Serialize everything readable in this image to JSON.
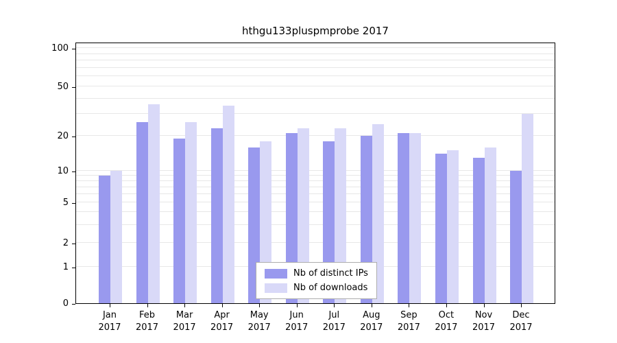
{
  "title": "hthgu133pluspmprobe 2017",
  "chart_data": {
    "type": "bar",
    "title": "hthgu133pluspmprobe 2017",
    "categories": [
      "Jan",
      "Feb",
      "Mar",
      "Apr",
      "May",
      "Jun",
      "Jul",
      "Aug",
      "Sep",
      "Oct",
      "Nov",
      "Dec"
    ],
    "year_label": "2017",
    "series": [
      {
        "name": "Nb of distinct IPs",
        "color": "#9999ee",
        "values": [
          9,
          26,
          19,
          23,
          16,
          21,
          18,
          20,
          21,
          14,
          13,
          10
        ]
      },
      {
        "name": "Nb of downloads",
        "color": "#d9d9f8",
        "values": [
          10,
          36,
          26,
          35,
          18,
          23,
          23,
          25,
          21,
          15,
          16,
          30
        ]
      }
    ],
    "y_ticks": [
      0,
      1,
      2,
      5,
      10,
      20,
      50,
      100
    ],
    "ylim": [
      0,
      100
    ],
    "scale": "log-like",
    "grid": true,
    "legend_position": "bottom-center"
  }
}
